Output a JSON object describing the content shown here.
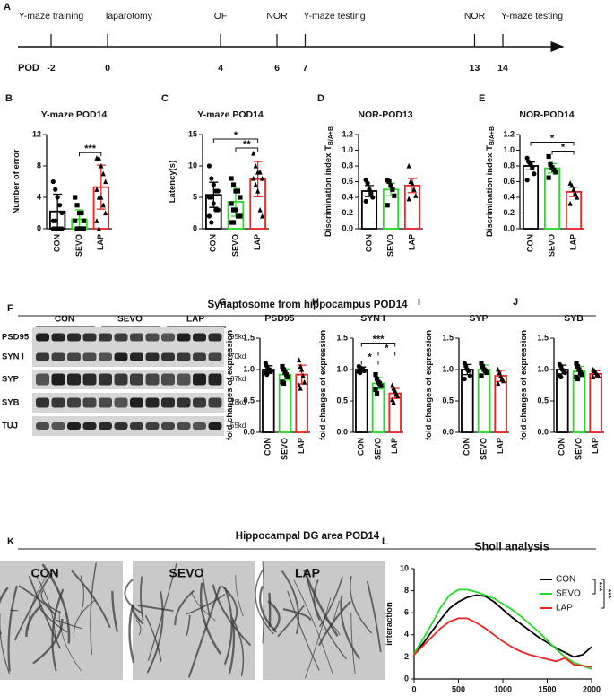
{
  "timeline": {
    "panel": "A",
    "axis_label": "POD",
    "events": [
      {
        "label": "Y-maze training",
        "day": -2
      },
      {
        "label": "laparotomy",
        "day": 0
      },
      {
        "label": "OF",
        "day": 4
      },
      {
        "label": "NOR",
        "day": 6
      },
      {
        "label": "Y-maze testing",
        "day": 7
      },
      {
        "label": "NOR",
        "day": 13
      },
      {
        "label": "Y-maze testing",
        "day": 14
      }
    ],
    "ticks": [
      -2,
      0,
      4,
      6,
      7,
      13,
      14
    ]
  },
  "sections": [
    "Synaptosome from hippocampus POD14",
    "Hippocampal DG area POD14"
  ],
  "blot": {
    "panel": "F",
    "groups": [
      "CON",
      "SEVO",
      "LAP"
    ],
    "rows": [
      {
        "label": "PSD95",
        "size": "95kd"
      },
      {
        "label": "SYN I",
        "size": "70kd"
      },
      {
        "label": "SYP",
        "size": "37kd"
      },
      {
        "label": "SYB",
        "size": "18kd"
      },
      {
        "label": "TUJ",
        "size": "55kd"
      }
    ]
  },
  "images": {
    "panel": "K",
    "labels": [
      "CON",
      "SEVO",
      "LAP"
    ]
  },
  "chart_data": [
    {
      "type": "bar",
      "panel": "B",
      "title": "Y-maze POD14",
      "ylabel": "Number of error",
      "categories": [
        "CON",
        "SEVO",
        "LAP"
      ],
      "colors": [
        "#000000",
        "#22dd22",
        "#ee2222"
      ],
      "markers": [
        "circle",
        "square",
        "triangle"
      ],
      "values": [
        2.2,
        1.2,
        5.3
      ],
      "errors": [
        2.2,
        1.2,
        2.8
      ],
      "ylim": [
        0,
        12
      ],
      "yticks": [
        0,
        4,
        8,
        12
      ],
      "points": [
        [
          6,
          5,
          4,
          3,
          2,
          1,
          1,
          0,
          0,
          0,
          0,
          0
        ],
        [
          4,
          3,
          2,
          2,
          1,
          1,
          0,
          0,
          0,
          0
        ],
        [
          9,
          9,
          8,
          7,
          6,
          5,
          4,
          4,
          3,
          2,
          1,
          0
        ]
      ],
      "annotations": [
        {
          "text": "***",
          "between": [
            "SEVO",
            "LAP"
          ]
        }
      ]
    },
    {
      "type": "bar",
      "panel": "C",
      "title": "Y-maze POD14",
      "ylabel": "Latency(s)",
      "categories": [
        "CON",
        "SEVO",
        "LAP"
      ],
      "colors": [
        "#000000",
        "#22dd22",
        "#ee2222"
      ],
      "markers": [
        "circle",
        "square",
        "triangle"
      ],
      "values": [
        5.4,
        4.3,
        7.9
      ],
      "errors": [
        2.0,
        2.3,
        2.8
      ],
      "ylim": [
        0,
        15
      ],
      "yticks": [
        0,
        5,
        10,
        15
      ],
      "points": [
        [
          10,
          8,
          7,
          6,
          6,
          5,
          5,
          4,
          3,
          3,
          2,
          1
        ],
        [
          8,
          7,
          6,
          6,
          5,
          4,
          3,
          3,
          2,
          2,
          1,
          1
        ],
        [
          12,
          10,
          9,
          9,
          8,
          8,
          7,
          6,
          3,
          2
        ]
      ],
      "annotations": [
        {
          "text": "**",
          "between": [
            "SEVO",
            "LAP"
          ]
        },
        {
          "text": "*",
          "between": [
            "CON",
            "LAP"
          ]
        }
      ]
    },
    {
      "type": "bar",
      "panel": "D",
      "title": "NOR-POD13",
      "ylabel": "Discrimination index T",
      "ylabel_sub": "B/A+B",
      "categories": [
        "CON",
        "SEVO",
        "LAP"
      ],
      "colors": [
        "#000000",
        "#22dd22",
        "#ee2222"
      ],
      "markers": [
        "circle",
        "square",
        "triangle"
      ],
      "values": [
        0.48,
        0.5,
        0.55
      ],
      "errors": [
        0.07,
        0.08,
        0.09
      ],
      "ylim": [
        0,
        1.2
      ],
      "yticks": [
        {
          "value": 0,
          "label": "0.0"
        },
        0.2,
        0.4,
        0.6,
        0.8,
        {
          "value": 1,
          "label": "1.0"
        },
        1.2
      ],
      "points": [
        [
          0.62,
          0.58,
          0.5,
          0.45,
          0.4,
          0.35
        ],
        [
          0.62,
          0.6,
          0.55,
          0.5,
          0.42,
          0.3
        ],
        [
          0.8,
          0.6,
          0.58,
          0.5,
          0.42,
          0.38
        ]
      ],
      "annotations": []
    },
    {
      "type": "bar",
      "panel": "E",
      "title": "NOR-POD14",
      "ylabel": "Discrimination index T",
      "ylabel_sub": "B/A+B",
      "categories": [
        "CON",
        "SEVO",
        "LAP"
      ],
      "colors": [
        "#000000",
        "#22dd22",
        "#ee2222"
      ],
      "markers": [
        "circle",
        "square",
        "triangle"
      ],
      "values": [
        0.8,
        0.77,
        0.47
      ],
      "errors": [
        0.05,
        0.06,
        0.06
      ],
      "ylim": [
        0,
        1.2
      ],
      "yticks": [
        {
          "value": 0,
          "label": "0.0"
        },
        0.2,
        0.4,
        0.6,
        0.8,
        {
          "value": 1,
          "label": "1.0"
        },
        1.2
      ],
      "points": [
        [
          0.9,
          0.85,
          0.82,
          0.78,
          0.7,
          0.62
        ],
        [
          0.92,
          0.82,
          0.78,
          0.75,
          0.72,
          0.65
        ],
        [
          0.58,
          0.55,
          0.5,
          0.45,
          0.4,
          0.32
        ]
      ],
      "annotations": [
        {
          "text": "*",
          "between": [
            "SEVO",
            "LAP"
          ]
        },
        {
          "text": "*",
          "between": [
            "CON",
            "LAP"
          ]
        }
      ]
    },
    {
      "type": "bar",
      "panel": "G",
      "title": "PSD95",
      "ylabel": "fold changes of expression",
      "categories": [
        "CON",
        "SEVO",
        "LAP"
      ],
      "colors": [
        "#000000",
        "#22dd22",
        "#ee2222"
      ],
      "markers": [
        "circle",
        "square",
        "triangle"
      ],
      "values": [
        1.0,
        0.92,
        0.92
      ],
      "errors": [
        0.06,
        0.09,
        0.15
      ],
      "ylim": [
        0,
        1.5
      ],
      "yticks": [
        {
          "value": 0,
          "label": "0.0"
        },
        0.5,
        {
          "value": 1,
          "label": "1.0"
        },
        1.5
      ],
      "points": [
        [
          1.1,
          1.05,
          1.0,
          1.0,
          0.97,
          0.95,
          0.92
        ],
        [
          1.05,
          1.0,
          0.95,
          0.92,
          0.88,
          0.8,
          0.78
        ],
        [
          1.15,
          1.05,
          1.0,
          0.9,
          0.8,
          0.75,
          0.7
        ]
      ],
      "annotations": []
    },
    {
      "type": "bar",
      "panel": "H",
      "title": "SYN I",
      "ylabel": "fold changes of expression",
      "categories": [
        "CON",
        "SEVO",
        "LAP"
      ],
      "colors": [
        "#000000",
        "#22dd22",
        "#ee2222"
      ],
      "markers": [
        "circle",
        "square",
        "triangle"
      ],
      "values": [
        1.0,
        0.78,
        0.62
      ],
      "errors": [
        0.04,
        0.09,
        0.08
      ],
      "ylim": [
        0,
        1.5
      ],
      "yticks": [
        {
          "value": 0,
          "label": "0.0"
        },
        0.5,
        {
          "value": 1,
          "label": "1.0"
        },
        1.5
      ],
      "points": [
        [
          1.05,
          1.03,
          1.0,
          1.0,
          0.98,
          0.96,
          0.95
        ],
        [
          0.92,
          0.85,
          0.8,
          0.78,
          0.74,
          0.68,
          0.62
        ],
        [
          0.75,
          0.7,
          0.66,
          0.62,
          0.58,
          0.52,
          0.48
        ]
      ],
      "annotations": [
        {
          "text": "*",
          "between": [
            "CON",
            "SEVO"
          ]
        },
        {
          "text": "*",
          "between": [
            "SEVO",
            "LAP"
          ]
        },
        {
          "text": "***",
          "between": [
            "CON",
            "LAP"
          ]
        }
      ]
    },
    {
      "type": "bar",
      "panel": "I",
      "title": "SYP",
      "ylabel": "fold changes of expression",
      "categories": [
        "CON",
        "SEVO",
        "LAP"
      ],
      "colors": [
        "#000000",
        "#22dd22",
        "#ee2222"
      ],
      "markers": [
        "circle",
        "square",
        "triangle"
      ],
      "values": [
        1.0,
        1.0,
        0.9
      ],
      "errors": [
        0.08,
        0.07,
        0.09
      ],
      "ylim": [
        0,
        1.5
      ],
      "yticks": [
        {
          "value": 0,
          "label": "0.0"
        },
        0.5,
        {
          "value": 1,
          "label": "1.0"
        },
        1.5
      ],
      "points": [
        [
          1.1,
          1.05,
          1.0,
          0.98,
          0.9,
          0.85
        ],
        [
          1.1,
          1.05,
          1.0,
          0.98,
          0.95,
          0.9
        ],
        [
          1.0,
          0.95,
          0.9,
          0.85,
          0.82,
          0.78
        ]
      ],
      "annotations": []
    },
    {
      "type": "bar",
      "panel": "J",
      "title": "SYB",
      "ylabel": "fold changes of expression",
      "categories": [
        "CON",
        "SEVO",
        "LAP"
      ],
      "colors": [
        "#000000",
        "#22dd22",
        "#ee2222"
      ],
      "markers": [
        "circle",
        "square",
        "triangle"
      ],
      "values": [
        1.0,
        0.97,
        0.93
      ],
      "errors": [
        0.07,
        0.08,
        0.05
      ],
      "ylim": [
        0,
        1.5
      ],
      "yticks": [
        {
          "value": 0,
          "label": "0.0"
        },
        0.5,
        {
          "value": 1,
          "label": "1.0"
        },
        1.5
      ],
      "points": [
        [
          1.08,
          1.05,
          1.0,
          0.98,
          0.95,
          0.9,
          0.88
        ],
        [
          1.1,
          1.05,
          1.0,
          0.95,
          0.92,
          0.88,
          0.85
        ],
        [
          1.0,
          0.98,
          0.95,
          0.92,
          0.9,
          0.88
        ]
      ],
      "annotations": []
    },
    {
      "type": "line",
      "panel": "L",
      "title": "Sholl analysis",
      "ylabel": "interaction",
      "x": [
        0,
        100,
        200,
        300,
        400,
        500,
        600,
        700,
        800,
        900,
        1000,
        1100,
        1200,
        1300,
        1400,
        1500,
        1600,
        1700,
        1800,
        1900,
        2000
      ],
      "xlim": [
        0,
        2000
      ],
      "xticks": [
        0,
        500,
        1000,
        1500,
        2000
      ],
      "ylim": [
        0,
        10
      ],
      "yticks": [
        0,
        2,
        4,
        6,
        8,
        10
      ],
      "legend": "upper right",
      "series": [
        {
          "name": "CON",
          "color": "#000000",
          "values": [
            2.3,
            3.2,
            4.3,
            5.4,
            6.4,
            7.0,
            7.4,
            7.6,
            7.5,
            7.0,
            6.3,
            5.6,
            5.0,
            4.4,
            3.8,
            3.3,
            2.8,
            2.4,
            2.0,
            2.2,
            2.9
          ]
        },
        {
          "name": "SEVO",
          "color": "#22dd22",
          "values": [
            2.3,
            3.6,
            5.0,
            6.5,
            7.6,
            8.1,
            8.1,
            7.9,
            7.6,
            7.3,
            6.8,
            6.3,
            5.7,
            5.0,
            4.3,
            3.5,
            2.7,
            2.0,
            1.5,
            1.2,
            0.9
          ]
        },
        {
          "name": "LAP",
          "color": "#ee2222",
          "values": [
            2.2,
            3.0,
            3.8,
            4.6,
            5.2,
            5.5,
            5.5,
            5.1,
            4.6,
            4.0,
            3.4,
            2.9,
            2.5,
            2.2,
            2.0,
            1.8,
            1.6,
            1.9,
            1.3,
            1.2,
            1.1
          ]
        }
      ],
      "annotations": [
        {
          "text": "***",
          "between": [
            "CON",
            "SEVO"
          ]
        },
        {
          "text": "***",
          "between": [
            "CON",
            "LAP"
          ]
        }
      ]
    }
  ]
}
